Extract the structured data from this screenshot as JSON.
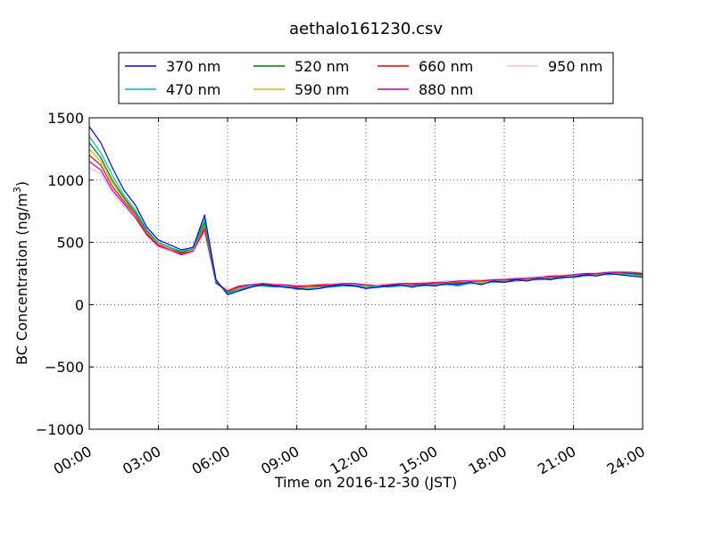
{
  "chart_data": {
    "type": "line",
    "title": "aethalo161230.csv",
    "xlabel": "Time on 2016-12-30 (JST)",
    "ylabel_main": "BC Concentration (ng/m",
    "ylabel_sup": "3",
    "ylabel_end": ")",
    "xlim_hours": [
      0,
      24
    ],
    "ylim": [
      -1000,
      1500
    ],
    "xticks": [
      {
        "value": 0,
        "label": "00:00"
      },
      {
        "value": 3,
        "label": "03:00"
      },
      {
        "value": 6,
        "label": "06:00"
      },
      {
        "value": 9,
        "label": "09:00"
      },
      {
        "value": 12,
        "label": "12:00"
      },
      {
        "value": 15,
        "label": "15:00"
      },
      {
        "value": 18,
        "label": "18:00"
      },
      {
        "value": 21,
        "label": "21:00"
      },
      {
        "value": 24,
        "label": "24:00"
      }
    ],
    "yticks": [
      {
        "value": 1500,
        "label": "1500"
      },
      {
        "value": 1000,
        "label": "1000"
      },
      {
        "value": 500,
        "label": "500"
      },
      {
        "value": 0,
        "label": "0"
      },
      {
        "value": -500,
        "label": "−500"
      },
      {
        "value": -1000,
        "label": "−1000"
      }
    ],
    "grid": true,
    "legend_position": "top-center",
    "series": [
      {
        "name": "370 nm",
        "color": "#0000ff",
        "x": [
          0.0,
          0.5,
          1.0,
          1.5,
          2.0,
          2.5,
          3.0,
          3.5,
          4.0,
          4.5,
          5.0,
          5.5,
          6.0,
          6.5,
          7.0,
          7.5,
          8.0,
          8.5,
          9.0,
          9.5,
          10.0,
          10.5,
          11.0,
          11.5,
          12.0,
          12.5,
          13.0,
          13.5,
          14.0,
          14.5,
          15.0,
          15.5,
          16.0,
          16.5,
          17.0,
          17.5,
          18.0,
          18.5,
          19.0,
          19.5,
          20.0,
          20.5,
          21.0,
          21.5,
          22.0,
          22.5,
          23.0,
          23.5,
          24.0
        ],
        "values": [
          1430,
          1300,
          1100,
          920,
          800,
          620,
          520,
          480,
          440,
          460,
          720,
          200,
          80,
          110,
          140,
          160,
          150,
          140,
          130,
          120,
          130,
          150,
          160,
          150,
          130,
          140,
          150,
          160,
          140,
          160,
          150,
          170,
          160,
          180,
          160,
          190,
          180,
          200,
          190,
          210,
          200,
          220,
          220,
          240,
          230,
          250,
          240,
          230,
          220
        ]
      },
      {
        "name": "470 nm",
        "color": "#00bfbf",
        "x": [
          0.0,
          0.5,
          1.0,
          1.5,
          2.0,
          2.5,
          3.0,
          3.5,
          4.0,
          4.5,
          5.0,
          5.5,
          6.0,
          6.5,
          7.0,
          7.5,
          8.0,
          8.5,
          9.0,
          9.5,
          10.0,
          10.5,
          11.0,
          11.5,
          12.0,
          12.5,
          13.0,
          13.5,
          14.0,
          14.5,
          15.0,
          15.5,
          16.0,
          16.5,
          17.0,
          17.5,
          18.0,
          18.5,
          19.0,
          19.5,
          20.0,
          20.5,
          21.0,
          21.5,
          22.0,
          22.5,
          23.0,
          23.5,
          24.0
        ],
        "values": [
          1350,
          1220,
          1040,
          880,
          760,
          600,
          500,
          460,
          430,
          450,
          690,
          190,
          90,
          120,
          150,
          150,
          140,
          150,
          120,
          130,
          140,
          140,
          150,
          160,
          140,
          150,
          140,
          150,
          150,
          150,
          160,
          160,
          150,
          170,
          170,
          180,
          190,
          190,
          200,
          200,
          210,
          210,
          230,
          230,
          240,
          240,
          250,
          240,
          230
        ]
      },
      {
        "name": "520 nm",
        "color": "#007f00",
        "x": [
          0.0,
          0.5,
          1.0,
          1.5,
          2.0,
          2.5,
          3.0,
          3.5,
          4.0,
          4.5,
          5.0,
          5.5,
          6.0,
          6.5,
          7.0,
          7.5,
          8.0,
          8.5,
          9.0,
          9.5,
          10.0,
          10.5,
          11.0,
          11.5,
          12.0,
          12.5,
          13.0,
          13.5,
          14.0,
          14.5,
          15.0,
          15.5,
          16.0,
          16.5,
          17.0,
          17.5,
          18.0,
          18.5,
          19.0,
          19.5,
          20.0,
          20.5,
          21.0,
          21.5,
          22.0,
          22.5,
          23.0,
          23.5,
          24.0
        ],
        "values": [
          1300,
          1180,
          1000,
          860,
          740,
          590,
          500,
          460,
          420,
          450,
          660,
          180,
          100,
          120,
          140,
          160,
          150,
          140,
          130,
          130,
          140,
          150,
          150,
          150,
          140,
          140,
          150,
          150,
          150,
          160,
          160,
          160,
          170,
          170,
          170,
          180,
          180,
          190,
          200,
          200,
          210,
          220,
          220,
          230,
          240,
          240,
          250,
          250,
          240
        ]
      },
      {
        "name": "590 nm",
        "color": "#bfbf00",
        "x": [
          0.0,
          0.5,
          1.0,
          1.5,
          2.0,
          2.5,
          3.0,
          3.5,
          4.0,
          4.5,
          5.0,
          5.5,
          6.0,
          6.5,
          7.0,
          7.5,
          8.0,
          8.5,
          9.0,
          9.5,
          10.0,
          10.5,
          11.0,
          11.5,
          12.0,
          12.5,
          13.0,
          13.5,
          14.0,
          14.5,
          15.0,
          15.5,
          16.0,
          16.5,
          17.0,
          17.5,
          18.0,
          18.5,
          19.0,
          19.5,
          20.0,
          20.5,
          21.0,
          21.5,
          22.0,
          22.5,
          23.0,
          23.5,
          24.0
        ],
        "values": [
          1250,
          1150,
          980,
          850,
          730,
          580,
          490,
          450,
          420,
          440,
          640,
          180,
          100,
          130,
          150,
          150,
          150,
          150,
          130,
          140,
          140,
          150,
          160,
          150,
          150,
          140,
          150,
          160,
          150,
          160,
          160,
          170,
          170,
          180,
          180,
          190,
          190,
          190,
          200,
          210,
          210,
          220,
          230,
          230,
          240,
          250,
          250,
          240,
          240
        ]
      },
      {
        "name": "660 nm",
        "color": "#ff0000",
        "x": [
          0.0,
          0.5,
          1.0,
          1.5,
          2.0,
          2.5,
          3.0,
          3.5,
          4.0,
          4.5,
          5.0,
          5.5,
          6.0,
          6.5,
          7.0,
          7.5,
          8.0,
          8.5,
          9.0,
          9.5,
          10.0,
          10.5,
          11.0,
          11.5,
          12.0,
          12.5,
          13.0,
          13.5,
          14.0,
          14.5,
          15.0,
          15.5,
          16.0,
          16.5,
          17.0,
          17.5,
          18.0,
          18.5,
          19.0,
          19.5,
          20.0,
          20.5,
          21.0,
          21.5,
          22.0,
          22.5,
          23.0,
          23.5,
          24.0
        ],
        "values": [
          1200,
          1120,
          950,
          830,
          720,
          570,
          480,
          450,
          410,
          440,
          620,
          180,
          110,
          140,
          150,
          170,
          160,
          150,
          140,
          150,
          150,
          160,
          160,
          160,
          150,
          150,
          160,
          160,
          160,
          170,
          170,
          170,
          180,
          180,
          190,
          190,
          200,
          200,
          210,
          210,
          220,
          230,
          230,
          240,
          250,
          250,
          260,
          250,
          250
        ]
      },
      {
        "name": "880 nm",
        "color": "#bf00bf",
        "x": [
          0.0,
          0.5,
          1.0,
          1.5,
          2.0,
          2.5,
          3.0,
          3.5,
          4.0,
          4.5,
          5.0,
          5.5,
          6.0,
          6.5,
          7.0,
          7.5,
          8.0,
          8.5,
          9.0,
          9.5,
          10.0,
          10.5,
          11.0,
          11.5,
          12.0,
          12.5,
          13.0,
          13.5,
          14.0,
          14.5,
          15.0,
          15.5,
          16.0,
          16.5,
          17.0,
          17.5,
          18.0,
          18.5,
          19.0,
          19.5,
          20.0,
          20.5,
          21.0,
          21.5,
          22.0,
          22.5,
          23.0,
          23.5,
          24.0
        ],
        "values": [
          1150,
          1080,
          920,
          810,
          700,
          560,
          470,
          440,
          400,
          430,
          600,
          170,
          110,
          150,
          160,
          170,
          160,
          160,
          150,
          150,
          160,
          160,
          170,
          170,
          160,
          150,
          160,
          170,
          170,
          170,
          180,
          180,
          190,
          190,
          190,
          200,
          200,
          210,
          210,
          220,
          230,
          230,
          240,
          250,
          250,
          260,
          260,
          260,
          250
        ]
      },
      {
        "name": "950 nm",
        "color": "#ffc0cb",
        "x": [
          0.0,
          0.5,
          1.0,
          1.5,
          2.0,
          2.5,
          3.0,
          3.5,
          4.0,
          4.5,
          5.0,
          5.5,
          6.0,
          6.5,
          7.0,
          7.5,
          8.0,
          8.5,
          9.0,
          9.5,
          10.0,
          10.5,
          11.0,
          11.5,
          12.0,
          12.5,
          13.0,
          13.5,
          14.0,
          14.5,
          15.0,
          15.5,
          16.0,
          16.5,
          17.0,
          17.5,
          18.0,
          18.5,
          19.0,
          19.5,
          20.0,
          20.5,
          21.0,
          21.5,
          22.0,
          22.5,
          23.0,
          23.5,
          24.0
        ],
        "values": [
          1100,
          1050,
          900,
          790,
          690,
          550,
          460,
          430,
          400,
          420,
          580,
          170,
          120,
          150,
          160,
          170,
          170,
          160,
          150,
          160,
          160,
          170,
          170,
          170,
          160,
          160,
          170,
          170,
          170,
          180,
          180,
          190,
          190,
          200,
          200,
          200,
          210,
          210,
          220,
          220,
          230,
          240,
          240,
          250,
          250,
          260,
          270,
          260,
          260
        ]
      }
    ]
  }
}
